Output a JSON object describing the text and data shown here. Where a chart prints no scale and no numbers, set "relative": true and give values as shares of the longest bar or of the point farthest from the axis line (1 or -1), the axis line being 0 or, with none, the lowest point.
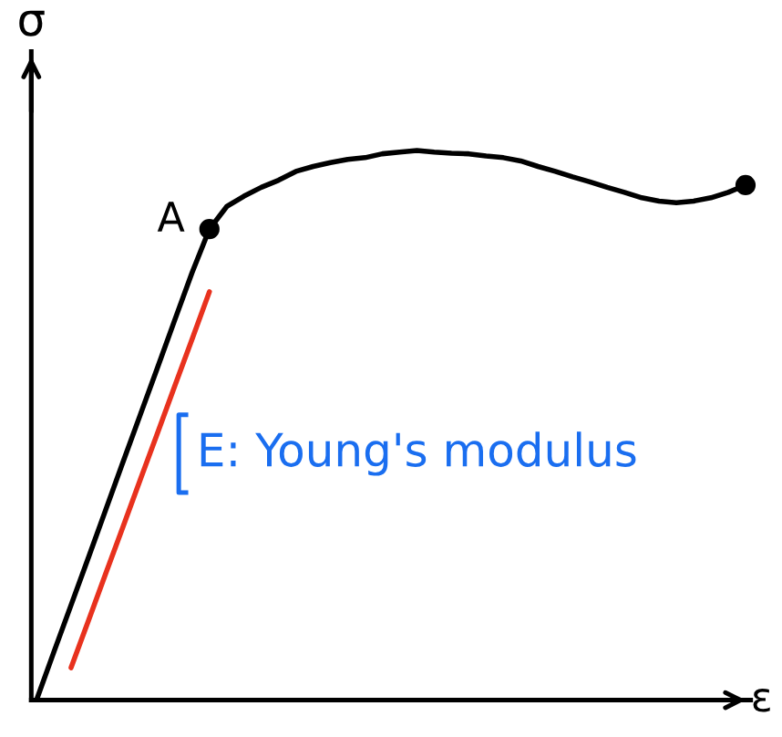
{
  "chart_data": {
    "type": "line",
    "relative": true,
    "xlabel": "ε",
    "ylabel": "σ",
    "categories": [
      null,
      null,
      null,
      null,
      null,
      null,
      null,
      null,
      null,
      null,
      null,
      null,
      null,
      null,
      null,
      null,
      null,
      null,
      null,
      null,
      null,
      null,
      null,
      null,
      null,
      null,
      null,
      null,
      null,
      null,
      null,
      null,
      null,
      null,
      null,
      null,
      null,
      null,
      null,
      null,
      null,
      null
    ],
    "series": [
      {
        "color": "#000000",
        "values": [
          0,
          0.087,
          0.173,
          0.259,
          0.346,
          0.433,
          0.519,
          0.605,
          0.692,
          0.778,
          0.857,
          0.898,
          0.917,
          0.933,
          0.946,
          0.962,
          0.971,
          0.978,
          0.984,
          0.987,
          0.994,
          0.997,
          1.0,
          0.997,
          0.995,
          0.994,
          0.99,
          0.987,
          0.981,
          0.971,
          0.962,
          0.952,
          0.943,
          0.933,
          0.924,
          0.914,
          0.908,
          0.905,
          0.908,
          0.914,
          0.924,
          0.937
        ]
      },
      {
        "color": "#e8321e",
        "values": [
          null,
          null,
          0.059,
          0.144,
          0.23,
          0.315,
          0.401,
          0.486,
          0.572,
          0.657,
          0.743,
          null,
          null,
          null,
          null,
          null,
          null,
          null,
          null,
          null,
          null,
          null,
          null,
          null,
          null,
          null,
          null,
          null,
          null,
          null,
          null,
          null,
          null,
          null,
          null,
          null,
          null,
          null,
          null,
          null,
          null,
          null
        ]
      }
    ],
    "annotations": [
      "A",
      "E: Young's modulus"
    ],
    "marker": "none",
    "line_style": "solid"
  }
}
